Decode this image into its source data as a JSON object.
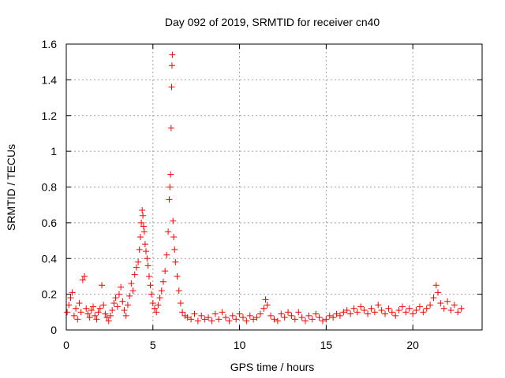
{
  "chart_data": {
    "type": "scatter",
    "title": "Day 092 of 2019, SRMTID for receiver cn40",
    "xlabel": "GPS time / hours",
    "ylabel": "SRMTID / TECUs",
    "xlim": [
      0,
      24
    ],
    "ylim": [
      0,
      1.6
    ],
    "xticks": [
      0,
      5,
      10,
      15,
      20
    ],
    "yticks": [
      0,
      0.2,
      0.4,
      0.6,
      0.8,
      1,
      1.2,
      1.4,
      1.6
    ],
    "xtick_labels": [
      "0",
      "5",
      "10",
      "15",
      "20"
    ],
    "ytick_labels": [
      "0",
      "0.2",
      "0.4",
      "0.6",
      "0.8",
      "1",
      "1.2",
      "1.4",
      "1.6"
    ],
    "grid": true,
    "marker": "+",
    "marker_color": "#ff0000",
    "series": [
      {
        "name": "SRMTID",
        "points": [
          [
            0.05,
            0.1
          ],
          [
            0.15,
            0.14
          ],
          [
            0.25,
            0.18
          ],
          [
            0.35,
            0.21
          ],
          [
            0.45,
            0.08
          ],
          [
            0.55,
            0.12
          ],
          [
            0.65,
            0.06
          ],
          [
            0.75,
            0.15
          ],
          [
            0.85,
            0.1
          ],
          [
            0.95,
            0.28
          ],
          [
            1.05,
            0.3
          ],
          [
            1.15,
            0.12
          ],
          [
            1.25,
            0.09
          ],
          [
            1.35,
            0.07
          ],
          [
            1.45,
            0.11
          ],
          [
            1.55,
            0.13
          ],
          [
            1.65,
            0.08
          ],
          [
            1.75,
            0.06
          ],
          [
            1.85,
            0.1
          ],
          [
            1.95,
            0.12
          ],
          [
            2.05,
            0.25
          ],
          [
            2.15,
            0.14
          ],
          [
            2.25,
            0.09
          ],
          [
            2.35,
            0.07
          ],
          [
            2.45,
            0.05
          ],
          [
            2.55,
            0.08
          ],
          [
            2.65,
            0.11
          ],
          [
            2.75,
            0.15
          ],
          [
            2.85,
            0.18
          ],
          [
            2.95,
            0.13
          ],
          [
            3.05,
            0.2
          ],
          [
            3.15,
            0.24
          ],
          [
            3.25,
            0.16
          ],
          [
            3.35,
            0.11
          ],
          [
            3.45,
            0.08
          ],
          [
            3.55,
            0.14
          ],
          [
            3.65,
            0.19
          ],
          [
            3.75,
            0.26
          ],
          [
            3.85,
            0.22
          ],
          [
            3.95,
            0.31
          ],
          [
            4.05,
            0.35
          ],
          [
            4.15,
            0.38
          ],
          [
            4.22,
            0.45
          ],
          [
            4.28,
            0.52
          ],
          [
            4.33,
            0.6
          ],
          [
            4.38,
            0.67
          ],
          [
            4.42,
            0.64
          ],
          [
            4.46,
            0.58
          ],
          [
            4.5,
            0.55
          ],
          [
            4.55,
            0.48
          ],
          [
            4.6,
            0.44
          ],
          [
            4.66,
            0.4
          ],
          [
            4.72,
            0.36
          ],
          [
            4.78,
            0.3
          ],
          [
            4.85,
            0.25
          ],
          [
            4.92,
            0.2
          ],
          [
            5.0,
            0.15
          ],
          [
            5.1,
            0.12
          ],
          [
            5.2,
            0.1
          ],
          [
            5.3,
            0.14
          ],
          [
            5.4,
            0.18
          ],
          [
            5.5,
            0.22
          ],
          [
            5.6,
            0.27
          ],
          [
            5.7,
            0.33
          ],
          [
            5.8,
            0.42
          ],
          [
            5.88,
            0.55
          ],
          [
            5.94,
            0.73
          ],
          [
            5.98,
            0.8
          ],
          [
            6.02,
            0.87
          ],
          [
            6.05,
            1.13
          ],
          [
            6.08,
            1.36
          ],
          [
            6.1,
            1.48
          ],
          [
            6.12,
            1.54
          ],
          [
            6.16,
            0.61
          ],
          [
            6.2,
            0.52
          ],
          [
            6.25,
            0.45
          ],
          [
            6.3,
            0.38
          ],
          [
            6.4,
            0.3
          ],
          [
            6.5,
            0.22
          ],
          [
            6.6,
            0.15
          ],
          [
            6.7,
            0.1
          ],
          [
            6.85,
            0.08
          ],
          [
            7.0,
            0.07
          ],
          [
            7.2,
            0.06
          ],
          [
            7.4,
            0.09
          ],
          [
            7.6,
            0.05
          ],
          [
            7.8,
            0.08
          ],
          [
            8.0,
            0.06
          ],
          [
            8.2,
            0.07
          ],
          [
            8.4,
            0.05
          ],
          [
            8.6,
            0.09
          ],
          [
            8.8,
            0.06
          ],
          [
            9.0,
            0.1
          ],
          [
            9.2,
            0.07
          ],
          [
            9.4,
            0.05
          ],
          [
            9.6,
            0.08
          ],
          [
            9.8,
            0.06
          ],
          [
            10.0,
            0.09
          ],
          [
            10.2,
            0.07
          ],
          [
            10.4,
            0.05
          ],
          [
            10.6,
            0.08
          ],
          [
            10.8,
            0.06
          ],
          [
            11.0,
            0.07
          ],
          [
            11.2,
            0.09
          ],
          [
            11.4,
            0.12
          ],
          [
            11.5,
            0.17
          ],
          [
            11.6,
            0.14
          ],
          [
            11.8,
            0.08
          ],
          [
            12.0,
            0.06
          ],
          [
            12.2,
            0.05
          ],
          [
            12.4,
            0.09
          ],
          [
            12.6,
            0.07
          ],
          [
            12.8,
            0.1
          ],
          [
            13.0,
            0.08
          ],
          [
            13.2,
            0.06
          ],
          [
            13.4,
            0.1
          ],
          [
            13.6,
            0.07
          ],
          [
            13.8,
            0.05
          ],
          [
            14.0,
            0.08
          ],
          [
            14.2,
            0.06
          ],
          [
            14.4,
            0.09
          ],
          [
            14.6,
            0.07
          ],
          [
            14.8,
            0.05
          ],
          [
            15.0,
            0.06
          ],
          [
            15.2,
            0.08
          ],
          [
            15.4,
            0.07
          ],
          [
            15.6,
            0.09
          ],
          [
            15.8,
            0.08
          ],
          [
            16.0,
            0.1
          ],
          [
            16.2,
            0.11
          ],
          [
            16.4,
            0.09
          ],
          [
            16.6,
            0.12
          ],
          [
            16.8,
            0.1
          ],
          [
            17.0,
            0.13
          ],
          [
            17.2,
            0.11
          ],
          [
            17.4,
            0.09
          ],
          [
            17.6,
            0.12
          ],
          [
            17.8,
            0.1
          ],
          [
            18.0,
            0.14
          ],
          [
            18.2,
            0.11
          ],
          [
            18.4,
            0.09
          ],
          [
            18.6,
            0.12
          ],
          [
            18.8,
            0.1
          ],
          [
            19.0,
            0.08
          ],
          [
            19.2,
            0.11
          ],
          [
            19.4,
            0.13
          ],
          [
            19.6,
            0.1
          ],
          [
            19.8,
            0.12
          ],
          [
            20.0,
            0.09
          ],
          [
            20.2,
            0.11
          ],
          [
            20.4,
            0.13
          ],
          [
            20.6,
            0.1
          ],
          [
            20.8,
            0.12
          ],
          [
            21.0,
            0.14
          ],
          [
            21.2,
            0.18
          ],
          [
            21.35,
            0.25
          ],
          [
            21.45,
            0.21
          ],
          [
            21.6,
            0.15
          ],
          [
            21.8,
            0.12
          ],
          [
            22.0,
            0.16
          ],
          [
            22.2,
            0.11
          ],
          [
            22.4,
            0.14
          ],
          [
            22.6,
            0.1
          ],
          [
            22.8,
            0.12
          ]
        ]
      }
    ]
  }
}
